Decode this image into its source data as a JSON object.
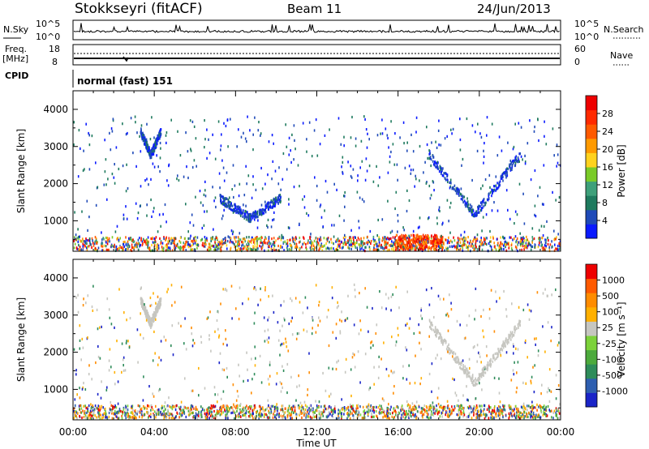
{
  "header": {
    "station": "Stokkseyri (fitACF)",
    "beam": "Beam 11",
    "date": "24/Jun/2013"
  },
  "noise_panel": {
    "left_label": "N.Sky",
    "left_ticks": [
      "10^5",
      "10^0"
    ],
    "right_label": "N.Search",
    "right_ticks": [
      "10^5",
      "10^0"
    ]
  },
  "freq_panel": {
    "left_label_line1": "Freq.",
    "left_label_line2": "[MHz]",
    "left_ticks": [
      "18",
      "8"
    ],
    "right_label": "Nave",
    "right_ticks": [
      "60",
      "0"
    ]
  },
  "cpid": {
    "label": "CPID",
    "program": "normal (fast) 151"
  },
  "time_axis": {
    "label": "Time UT",
    "ticks": [
      "00:00",
      "04:00",
      "08:00",
      "12:00",
      "16:00",
      "20:00",
      "00:00"
    ]
  },
  "chart_data": [
    {
      "type": "heatmap",
      "name": "power",
      "xlabel": "Time UT",
      "ylabel": "Slant Range [km]",
      "xlim_hours": [
        0,
        24
      ],
      "ylim_km": [
        180,
        4500
      ],
      "yticks": [
        "1000",
        "2000",
        "3000",
        "4000"
      ],
      "colorbar": {
        "label": "Power [dB]",
        "ticks": [
          "4",
          "8",
          "12",
          "16",
          "20",
          "24",
          "28"
        ],
        "colors": [
          "#0a1aff",
          "#1f4ab8",
          "#1e7a5e",
          "#3ea07a",
          "#7acb28",
          "#ffd21e",
          "#ff9a00",
          "#ff5a00",
          "#ff2a00",
          "#ee0000"
        ]
      },
      "features": [
        {
          "desc": "near-range band",
          "t": [
            0,
            24
          ],
          "r_km": [
            200,
            600
          ],
          "level": "mixed"
        },
        {
          "desc": "strong echo",
          "t": [
            15.8,
            18.2
          ],
          "r_km": [
            250,
            650
          ],
          "level": "high"
        },
        {
          "desc": "arc",
          "t": [
            3.3,
            4.3
          ],
          "r_km": [
            2800,
            3500
          ],
          "level": "low"
        },
        {
          "desc": "arc",
          "t": [
            7.2,
            10.2
          ],
          "r_km": [
            1100,
            1700
          ],
          "level": "low"
        },
        {
          "desc": "arc",
          "t": [
            17.5,
            22.0
          ],
          "r_km": [
            1200,
            3000
          ],
          "level": "low"
        }
      ]
    },
    {
      "type": "heatmap",
      "name": "velocity",
      "xlabel": "Time UT",
      "ylabel": "Slant Range [km]",
      "xlim_hours": [
        0,
        24
      ],
      "ylim_km": [
        180,
        4500
      ],
      "yticks": [
        "1000",
        "2000",
        "3000",
        "4000"
      ],
      "colorbar": {
        "label": "Velocity [m s⁻¹]",
        "ticks": [
          "1000",
          "500",
          "100",
          "25",
          "-25",
          "-100",
          "-500",
          "-1000"
        ],
        "colors": [
          "#1a24c8",
          "#2e5fb0",
          "#2e8c5a",
          "#4caa3c",
          "#7cd23a",
          "#c6c6c0",
          "#ffb000",
          "#ff8c00",
          "#ff5a00",
          "#ee0000"
        ]
      },
      "features": [
        {
          "desc": "near-range band",
          "t": [
            0,
            24
          ],
          "r_km": [
            250,
            600
          ],
          "level": "mixed"
        },
        {
          "desc": "arc",
          "t": [
            3.3,
            4.3
          ],
          "r_km": [
            2800,
            3500
          ],
          "level": "ground"
        },
        {
          "desc": "arc",
          "t": [
            17.5,
            22.0
          ],
          "r_km": [
            1200,
            3000
          ],
          "level": "ground"
        }
      ]
    }
  ]
}
